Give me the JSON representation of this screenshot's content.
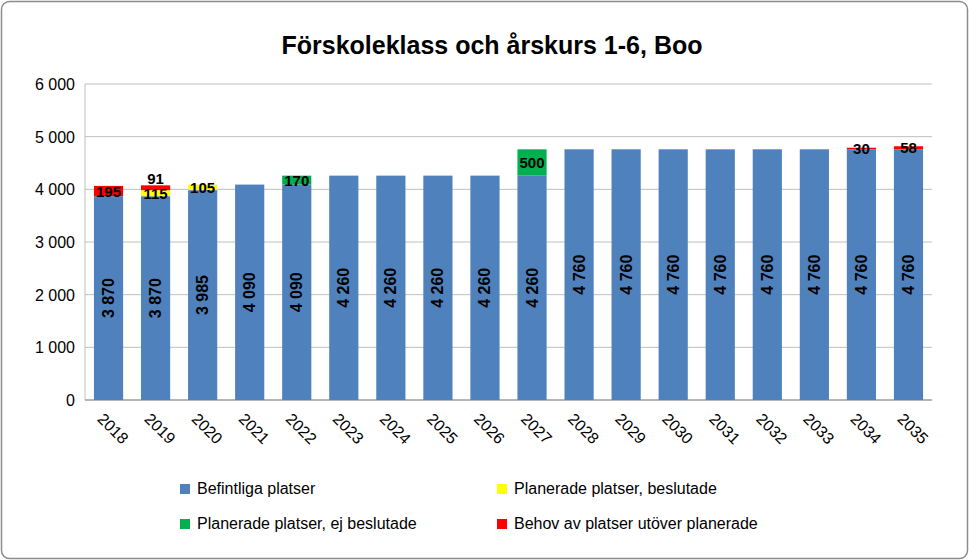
{
  "chart_data": {
    "type": "bar",
    "title": "Förskoleklass och årskurs 1-6, Boo",
    "stacked": true,
    "data_labels": true,
    "grid": true,
    "legend": "bottom",
    "categories": [
      "2018",
      "2019",
      "2020",
      "2021",
      "2022",
      "2023",
      "2024",
      "2025",
      "2026",
      "2027",
      "2028",
      "2029",
      "2030",
      "2031",
      "2032",
      "2033",
      "2034",
      "2035"
    ],
    "ylim": [
      0,
      6000
    ],
    "yticks": [
      0,
      {
        "value": 1000,
        "label": "1 000"
      },
      {
        "value": 2000,
        "label": "2 000"
      },
      {
        "value": 3000,
        "label": "3 000"
      },
      {
        "value": 4000,
        "label": "4 000"
      },
      {
        "value": 5000,
        "label": "5 000"
      },
      {
        "value": 6000,
        "label": "6 000"
      }
    ],
    "series": [
      {
        "name": "Befintliga platser",
        "color": "#4f81bd",
        "values": [
          3870,
          3870,
          3985,
          4090,
          4090,
          4260,
          4260,
          4260,
          4260,
          4260,
          4760,
          4760,
          4760,
          4760,
          4760,
          4760,
          4760,
          4760
        ],
        "value_labels": [
          "3 870",
          "3 870",
          "3 985",
          "4 090",
          "4 090",
          "4 260",
          "4 260",
          "4 260",
          "4 260",
          "4 260",
          "4 760",
          "4 760",
          "4 760",
          "4 760",
          "4 760",
          "4 760",
          "4 760",
          "4 760"
        ]
      },
      {
        "name": "Planerade platser, beslutade",
        "color": "#ffff00",
        "values": [
          null,
          115,
          105,
          null,
          null,
          null,
          null,
          null,
          null,
          null,
          null,
          null,
          null,
          null,
          null,
          null,
          null,
          null
        ]
      },
      {
        "name": "Planerade platser, ej beslutade",
        "color": "#00b050",
        "values": [
          null,
          null,
          null,
          null,
          170,
          null,
          null,
          null,
          null,
          500,
          null,
          null,
          null,
          null,
          null,
          null,
          null,
          null
        ]
      },
      {
        "name": "Behov av platser utöver planerade",
        "color": "#ff0000",
        "values": [
          195,
          91,
          null,
          null,
          null,
          null,
          null,
          null,
          null,
          null,
          null,
          null,
          null,
          null,
          null,
          null,
          30,
          58
        ]
      }
    ]
  }
}
